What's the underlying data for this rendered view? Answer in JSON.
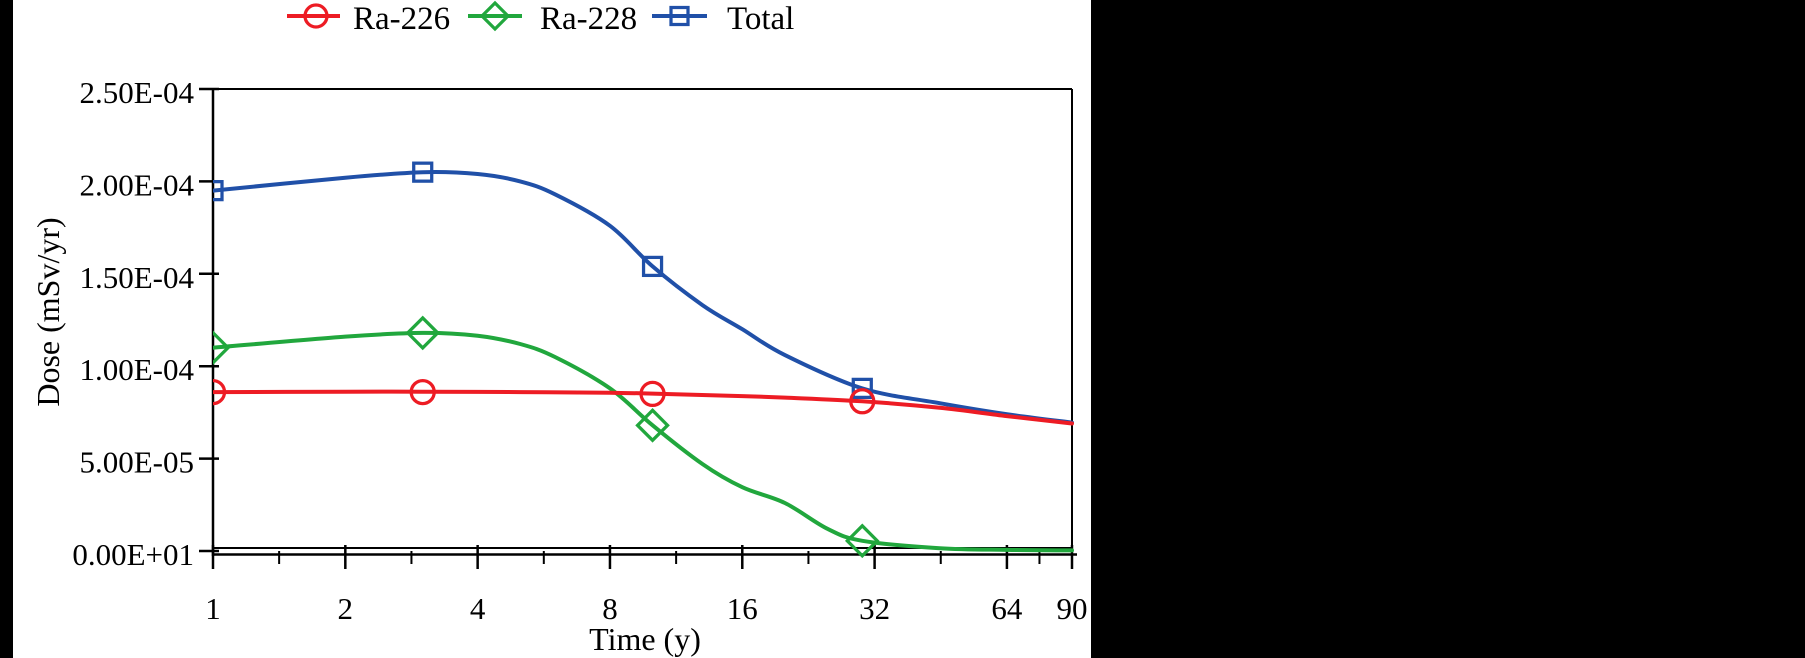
{
  "figure": {
    "canvas_background": "#000000",
    "panel_background": "#ffffff",
    "axis_color": "#000000",
    "text_color": "#000000"
  },
  "chart_data": {
    "type": "line",
    "title": "",
    "xlabel": "Time (y)",
    "ylabel": "Dose (mSv/yr)",
    "x_scale": "log2",
    "x_range": [
      1,
      90
    ],
    "ylim": [
      0,
      0.00025
    ],
    "grid": false,
    "legend_position": "top",
    "x_ticks": [
      {
        "t": 1,
        "label": "1"
      },
      {
        "t": 2,
        "label": "2"
      },
      {
        "t": 4,
        "label": "4"
      },
      {
        "t": 8,
        "label": "8"
      },
      {
        "t": 16,
        "label": "16"
      },
      {
        "t": 32,
        "label": "32"
      },
      {
        "t": 64,
        "label": "64"
      },
      {
        "t": 90,
        "label": "90"
      }
    ],
    "x_minor_ticks": [
      1.414,
      2.828,
      5.657,
      11.314,
      22.627,
      45.255,
      75.895
    ],
    "y_ticks": [
      {
        "v": 0,
        "label": "0.00E+01"
      },
      {
        "v": 5e-05,
        "label": "5.00E-05"
      },
      {
        "v": 0.0001,
        "label": "1.00E-04"
      },
      {
        "v": 0.00015,
        "label": "1.50E-04"
      },
      {
        "v": 0.0002,
        "label": "2.00E-04"
      },
      {
        "v": 0.00025,
        "label": "2.50E-04"
      }
    ],
    "series": [
      {
        "name": "Ra-226",
        "color": "#ed1c24",
        "marker": "circle",
        "points": [
          [
            1,
            8.6e-05
          ],
          [
            3,
            8.6e-05
          ],
          [
            10,
            8.5e-05
          ],
          [
            30,
            8.1e-05
          ]
        ],
        "curve": [
          [
            1,
            8.6e-05
          ],
          [
            2,
            8.62e-05
          ],
          [
            3,
            8.62e-05
          ],
          [
            5,
            8.6e-05
          ],
          [
            8,
            8.56e-05
          ],
          [
            10,
            8.52e-05
          ],
          [
            16,
            8.38e-05
          ],
          [
            20,
            8.3e-05
          ],
          [
            30,
            8.1e-05
          ],
          [
            45,
            7.75e-05
          ],
          [
            64,
            7.3e-05
          ],
          [
            90,
            6.9e-05
          ]
        ]
      },
      {
        "name": "Ra-228",
        "color": "#21a73d",
        "marker": "diamond",
        "points": [
          [
            1,
            0.00011
          ],
          [
            3,
            0.000118
          ],
          [
            10,
            6.8e-05
          ],
          [
            30,
            5.5e-06
          ]
        ],
        "curve": [
          [
            1,
            0.00011
          ],
          [
            2,
            0.000116
          ],
          [
            3,
            0.000118
          ],
          [
            4,
            0.0001165
          ],
          [
            5,
            0.000112
          ],
          [
            6,
            0.000105
          ],
          [
            8,
            8.8e-05
          ],
          [
            10,
            6.8e-05
          ],
          [
            13,
            4.7e-05
          ],
          [
            16,
            3.45e-05
          ],
          [
            20,
            2.6e-05
          ],
          [
            25,
            1.2e-05
          ],
          [
            30,
            5.5e-06
          ],
          [
            45,
            1.5e-06
          ],
          [
            64,
            6e-07
          ],
          [
            90,
            3e-07
          ]
        ]
      },
      {
        "name": "Total",
        "color": "#2050a8",
        "marker": "square",
        "points": [
          [
            1,
            0.000195
          ],
          [
            3,
            0.000205
          ],
          [
            10,
            0.000154
          ],
          [
            30,
            8.8e-05
          ]
        ],
        "curve": [
          [
            1,
            0.000195
          ],
          [
            2,
            0.000202
          ],
          [
            3,
            0.000205
          ],
          [
            4,
            0.000204
          ],
          [
            5,
            0.0002
          ],
          [
            6,
            0.000193
          ],
          [
            8,
            0.000176
          ],
          [
            10,
            0.000154
          ],
          [
            13,
            0.000133
          ],
          [
            16,
            0.00012
          ],
          [
            20,
            0.000106
          ],
          [
            30,
            8.8e-05
          ],
          [
            45,
            8e-05
          ],
          [
            64,
            7.4e-05
          ],
          [
            90,
            6.95e-05
          ]
        ]
      }
    ]
  }
}
